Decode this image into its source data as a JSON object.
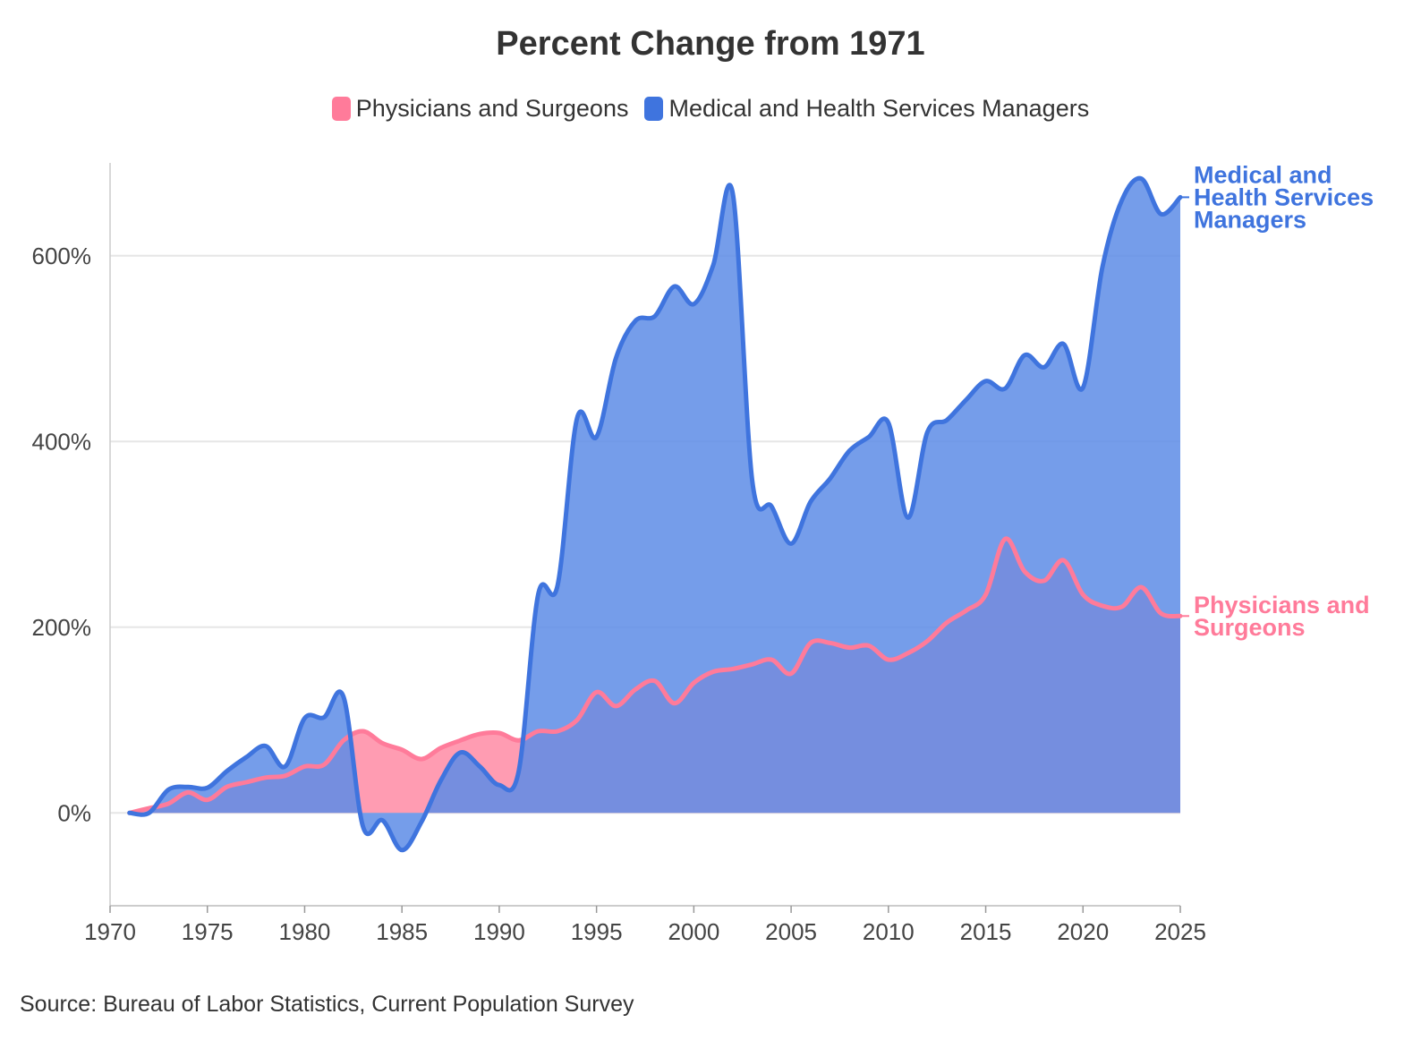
{
  "chart_data": {
    "type": "area",
    "title": "Percent Change from 1971",
    "source": "Source: Bureau of Labor Statistics, Current Population Survey",
    "xlim": [
      1970,
      2025
    ],
    "ylim": [
      -100,
      700
    ],
    "x_ticks": [
      1970,
      1975,
      1980,
      1985,
      1990,
      1995,
      2000,
      2005,
      2010,
      2015,
      2020,
      2025
    ],
    "y_ticks": [
      0,
      200,
      400,
      600
    ],
    "y_tick_labels": [
      "0%",
      "200%",
      "400%",
      "600%"
    ],
    "grid": "horizontal",
    "legend_position": "top",
    "series": [
      {
        "name": "Physicians and Surgeons",
        "end_label_lines": [
          "Physicians and",
          "Surgeons"
        ],
        "color": "#ff7b9a",
        "fill": "#ff91aa",
        "points": [
          [
            1971,
            0
          ],
          [
            1972,
            5
          ],
          [
            1973,
            10
          ],
          [
            1974,
            22
          ],
          [
            1975,
            14
          ],
          [
            1976,
            28
          ],
          [
            1977,
            33
          ],
          [
            1978,
            38
          ],
          [
            1979,
            40
          ],
          [
            1980,
            50
          ],
          [
            1981,
            52
          ],
          [
            1982,
            78
          ],
          [
            1983,
            88
          ],
          [
            1984,
            75
          ],
          [
            1985,
            68
          ],
          [
            1986,
            58
          ],
          [
            1987,
            70
          ],
          [
            1988,
            78
          ],
          [
            1989,
            85
          ],
          [
            1990,
            86
          ],
          [
            1991,
            78
          ],
          [
            1992,
            88
          ],
          [
            1993,
            88
          ],
          [
            1994,
            100
          ],
          [
            1995,
            130
          ],
          [
            1996,
            115
          ],
          [
            1997,
            133
          ],
          [
            1998,
            142
          ],
          [
            1999,
            118
          ],
          [
            2000,
            140
          ],
          [
            2001,
            152
          ],
          [
            2002,
            155
          ],
          [
            2003,
            160
          ],
          [
            2004,
            165
          ],
          [
            2005,
            150
          ],
          [
            2006,
            183
          ],
          [
            2007,
            183
          ],
          [
            2008,
            178
          ],
          [
            2009,
            180
          ],
          [
            2010,
            165
          ],
          [
            2011,
            172
          ],
          [
            2012,
            185
          ],
          [
            2013,
            205
          ],
          [
            2014,
            218
          ],
          [
            2015,
            235
          ],
          [
            2016,
            295
          ],
          [
            2017,
            260
          ],
          [
            2018,
            250
          ],
          [
            2019,
            272
          ],
          [
            2020,
            235
          ],
          [
            2021,
            223
          ],
          [
            2022,
            222
          ],
          [
            2023,
            243
          ],
          [
            2024,
            215
          ],
          [
            2025,
            212
          ]
        ]
      },
      {
        "name": "Medical and Health Services Managers",
        "end_label_lines": [
          "Medical and",
          "Health Services",
          "Managers"
        ],
        "color": "#3f74de",
        "fill": "#5d8ce6",
        "points": [
          [
            1971,
            0
          ],
          [
            1972,
            0
          ],
          [
            1973,
            25
          ],
          [
            1974,
            28
          ],
          [
            1975,
            27
          ],
          [
            1976,
            45
          ],
          [
            1977,
            60
          ],
          [
            1978,
            72
          ],
          [
            1979,
            50
          ],
          [
            1980,
            102
          ],
          [
            1981,
            103
          ],
          [
            1982,
            125
          ],
          [
            1983,
            -15
          ],
          [
            1984,
            -8
          ],
          [
            1985,
            -40
          ],
          [
            1986,
            -10
          ],
          [
            1987,
            35
          ],
          [
            1988,
            65
          ],
          [
            1989,
            50
          ],
          [
            1990,
            30
          ],
          [
            1991,
            45
          ],
          [
            1992,
            235
          ],
          [
            1993,
            245
          ],
          [
            1994,
            425
          ],
          [
            1995,
            405
          ],
          [
            1996,
            490
          ],
          [
            1997,
            530
          ],
          [
            1998,
            535
          ],
          [
            1999,
            567
          ],
          [
            2000,
            548
          ],
          [
            2001,
            590
          ],
          [
            2002,
            667
          ],
          [
            2003,
            358
          ],
          [
            2004,
            330
          ],
          [
            2005,
            290
          ],
          [
            2006,
            335
          ],
          [
            2007,
            360
          ],
          [
            2008,
            390
          ],
          [
            2009,
            405
          ],
          [
            2010,
            420
          ],
          [
            2011,
            318
          ],
          [
            2012,
            410
          ],
          [
            2013,
            423
          ],
          [
            2014,
            445
          ],
          [
            2015,
            465
          ],
          [
            2016,
            457
          ],
          [
            2017,
            493
          ],
          [
            2018,
            480
          ],
          [
            2019,
            505
          ],
          [
            2020,
            458
          ],
          [
            2021,
            588
          ],
          [
            2022,
            660
          ],
          [
            2023,
            683
          ],
          [
            2024,
            645
          ],
          [
            2025,
            663
          ]
        ]
      }
    ]
  }
}
